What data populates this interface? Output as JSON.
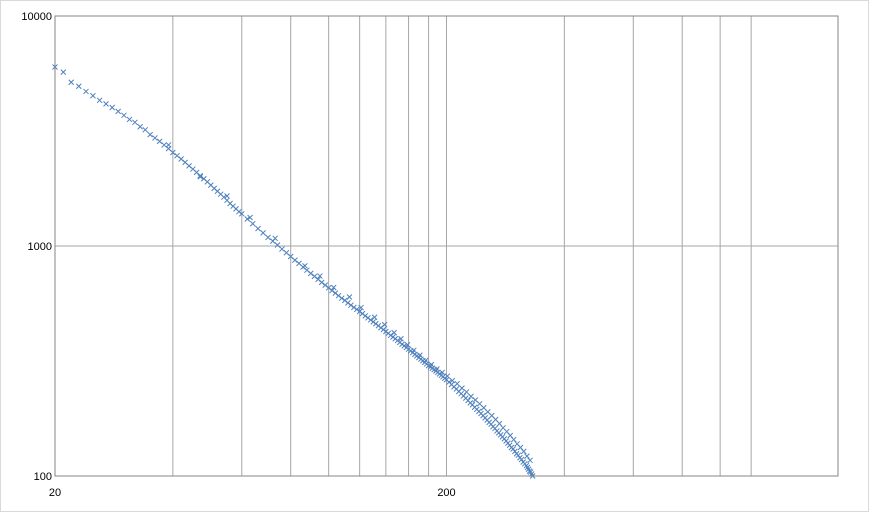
{
  "chart_data": {
    "type": "scatter",
    "title": "",
    "xlabel": "",
    "ylabel": "",
    "x_scale": "log",
    "y_scale": "log",
    "xlim": [
      20,
      2000
    ],
    "ylim": [
      100,
      10000
    ],
    "grid": true,
    "legend": "none",
    "marker": "x",
    "marker_color": "#4f81bd",
    "grid_color": "#a6a6a6",
    "x_tick_labels": [
      "20",
      "200"
    ],
    "y_tick_labels": [
      "100",
      "1000",
      "10000"
    ],
    "x_ticks": [
      20,
      200
    ],
    "y_ticks": [
      100,
      1000,
      10000
    ],
    "x_gridlines": [
      40,
      60,
      80,
      100,
      120,
      140,
      160,
      180,
      200,
      400,
      600,
      800,
      1000,
      1200
    ],
    "y_gridlines": [
      1000
    ],
    "series": [
      {
        "points": [
          [
            20,
            6000
          ],
          [
            21,
            5700
          ],
          [
            22,
            5150
          ],
          [
            23,
            4950
          ],
          [
            24,
            4700
          ],
          [
            25,
            4500
          ],
          [
            26,
            4300
          ],
          [
            27,
            4150
          ],
          [
            28,
            4000
          ],
          [
            29,
            3850
          ],
          [
            30,
            3700
          ],
          [
            31,
            3550
          ],
          [
            32,
            3450
          ],
          [
            33,
            3300
          ],
          [
            34,
            3200
          ],
          [
            35,
            3050
          ],
          [
            36,
            2950
          ],
          [
            37,
            2850
          ],
          [
            38,
            2750
          ],
          [
            39,
            2650
          ],
          [
            40,
            2550
          ],
          [
            41,
            2470
          ],
          [
            42,
            2390
          ],
          [
            43,
            2310
          ],
          [
            44,
            2230
          ],
          [
            45,
            2160
          ],
          [
            46,
            2090
          ],
          [
            47,
            2020
          ],
          [
            48,
            1960
          ],
          [
            49,
            1900
          ],
          [
            50,
            1840
          ],
          [
            51,
            1780
          ],
          [
            52,
            1730
          ],
          [
            53,
            1680
          ],
          [
            54,
            1630
          ],
          [
            55,
            1580
          ],
          [
            56,
            1530
          ],
          [
            57,
            1490
          ],
          [
            58,
            1450
          ],
          [
            59,
            1410
          ],
          [
            60,
            1380
          ],
          [
            62,
            1310
          ],
          [
            64,
            1250
          ],
          [
            66,
            1190
          ],
          [
            68,
            1140
          ],
          [
            70,
            1090
          ],
          [
            72,
            1050
          ],
          [
            74,
            1010
          ],
          [
            76,
            970
          ],
          [
            78,
            935
          ],
          [
            80,
            900
          ],
          [
            82,
            868
          ],
          [
            84,
            840
          ],
          [
            86,
            810
          ],
          [
            88,
            785
          ],
          [
            90,
            760
          ],
          [
            92,
            738
          ],
          [
            94,
            716
          ],
          [
            96,
            695
          ],
          [
            98,
            676
          ],
          [
            100,
            658
          ],
          [
            102,
            640
          ],
          [
            104,
            624
          ],
          [
            106,
            608
          ],
          [
            108,
            593
          ],
          [
            110,
            580
          ],
          [
            112,
            566
          ],
          [
            114,
            553
          ],
          [
            116,
            541
          ],
          [
            118,
            530
          ],
          [
            120,
            519
          ],
          [
            122,
            508
          ],
          [
            124,
            497
          ],
          [
            126,
            487
          ],
          [
            128,
            477
          ],
          [
            130,
            468
          ],
          [
            132,
            459
          ],
          [
            134,
            450
          ],
          [
            136,
            441
          ],
          [
            138,
            433
          ],
          [
            140,
            425
          ],
          [
            142,
            417
          ],
          [
            144,
            409
          ],
          [
            146,
            402
          ],
          [
            148,
            395
          ],
          [
            150,
            388
          ],
          [
            152,
            381
          ],
          [
            154,
            374
          ],
          [
            156,
            368
          ],
          [
            158,
            362
          ],
          [
            160,
            356
          ],
          [
            162,
            350
          ],
          [
            164,
            344
          ],
          [
            166,
            338
          ],
          [
            168,
            333
          ],
          [
            170,
            327
          ],
          [
            172,
            322
          ],
          [
            174,
            317
          ],
          [
            176,
            312
          ],
          [
            178,
            307
          ],
          [
            180,
            302
          ],
          [
            182,
            298
          ],
          [
            184,
            294
          ],
          [
            186,
            290
          ],
          [
            188,
            286
          ],
          [
            190,
            282
          ],
          [
            192,
            278
          ],
          [
            194,
            274
          ],
          [
            196,
            270
          ],
          [
            198,
            266
          ],
          [
            200,
            262
          ],
          [
            203,
            256
          ],
          [
            206,
            250
          ],
          [
            209,
            244
          ],
          [
            212,
            239
          ],
          [
            215,
            233
          ],
          [
            218,
            228
          ],
          [
            221,
            223
          ],
          [
            224,
            218
          ],
          [
            227,
            213
          ],
          [
            230,
            208
          ],
          [
            233,
            204
          ],
          [
            236,
            199
          ],
          [
            239,
            195
          ],
          [
            242,
            191
          ],
          [
            245,
            187
          ],
          [
            248,
            183
          ],
          [
            251,
            179
          ],
          [
            254,
            175
          ],
          [
            257,
            171
          ],
          [
            260,
            168
          ],
          [
            263,
            164
          ],
          [
            266,
            161
          ],
          [
            269,
            157
          ],
          [
            272,
            154
          ],
          [
            275,
            151
          ],
          [
            278,
            148
          ],
          [
            281,
            145
          ],
          [
            284,
            142
          ],
          [
            287,
            139
          ],
          [
            290,
            136
          ],
          [
            293,
            133
          ],
          [
            296,
            131
          ],
          [
            299,
            128
          ],
          [
            302,
            125
          ],
          [
            305,
            123
          ],
          [
            308,
            120
          ],
          [
            311,
            118
          ],
          [
            314,
            115
          ],
          [
            317,
            113
          ],
          [
            320,
            111
          ],
          [
            322,
            109
          ],
          [
            324,
            107
          ],
          [
            326,
            105
          ],
          [
            328,
            104
          ],
          [
            330,
            102
          ],
          [
            332,
            100
          ],
          [
            39,
            2750
          ],
          [
            47,
            2000
          ],
          [
            55,
            1650
          ],
          [
            63,
            1330
          ],
          [
            73,
            1080
          ],
          [
            87,
            820
          ],
          [
            95,
            740
          ],
          [
            103,
            660
          ],
          [
            113,
            600
          ],
          [
            121,
            540
          ],
          [
            131,
            490
          ],
          [
            139,
            455
          ],
          [
            147,
            420
          ],
          [
            153,
            395
          ],
          [
            159,
            372
          ],
          [
            165,
            352
          ],
          [
            171,
            335
          ],
          [
            177,
            318
          ],
          [
            183,
            305
          ],
          [
            189,
            292
          ],
          [
            195,
            282
          ],
          [
            201,
            272
          ],
          [
            207,
            260
          ],
          [
            213,
            252
          ],
          [
            219,
            241
          ],
          [
            225,
            232
          ],
          [
            231,
            222
          ],
          [
            237,
            214
          ],
          [
            243,
            206
          ],
          [
            249,
            198
          ],
          [
            255,
            190
          ],
          [
            261,
            183
          ],
          [
            267,
            176
          ],
          [
            273,
            169
          ],
          [
            279,
            162
          ],
          [
            285,
            156
          ],
          [
            291,
            150
          ],
          [
            297,
            144
          ],
          [
            303,
            138
          ],
          [
            309,
            133
          ],
          [
            315,
            128
          ],
          [
            321,
            122
          ],
          [
            327,
            117
          ]
        ]
      }
    ]
  }
}
